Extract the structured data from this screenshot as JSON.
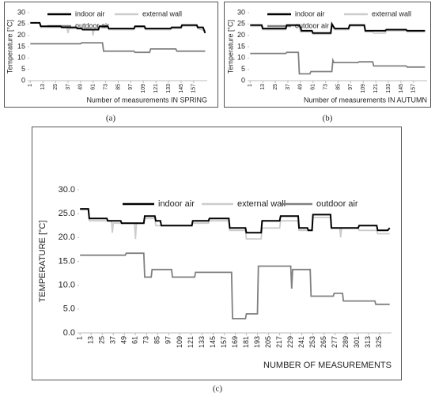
{
  "chart_data": [
    {
      "type": "line",
      "panel_label": "(a)",
      "ylabel": "Temperature [°C]",
      "xlabel": "Number of measurements IN SPRING",
      "legend": "top",
      "grid": false,
      "xlim": [
        0,
        170
      ],
      "xticks": [
        1,
        13,
        25,
        37,
        49,
        61,
        73,
        85,
        97,
        109,
        121,
        133,
        145,
        157
      ],
      "ylim": [
        0,
        30
      ],
      "yticks": [
        0,
        5,
        10,
        15,
        20,
        25,
        30
      ],
      "series": [
        {
          "name": "indoor air",
          "color": "#000000",
          "x": [
            1,
            10,
            11,
            30,
            31,
            45,
            46,
            50,
            51,
            66,
            67,
            75,
            76,
            100,
            101,
            110,
            111,
            135,
            136,
            145,
            146,
            160,
            161,
            166,
            168
          ],
          "values": [
            25.5,
            25.5,
            24,
            24,
            23.5,
            23.5,
            23,
            23,
            22.5,
            22.5,
            24,
            24,
            23,
            23,
            24,
            24,
            23,
            23,
            23.5,
            23.5,
            24.5,
            24.5,
            23.5,
            23.5,
            21
          ]
        },
        {
          "name": "external wall",
          "color": "#cccccc",
          "x": [
            1,
            10,
            11,
            36,
            37,
            38,
            60,
            61,
            62,
            66,
            67,
            75,
            76,
            100,
            101,
            110,
            111,
            135,
            136,
            145,
            146,
            160,
            161,
            168
          ],
          "values": [
            25.5,
            25.5,
            23.5,
            23.5,
            21,
            23,
            23,
            20,
            23,
            23,
            23.5,
            23.5,
            22.5,
            22.5,
            23.5,
            23.5,
            22.5,
            22.5,
            23,
            23,
            24,
            24,
            23,
            22
          ]
        },
        {
          "name": "outdoor air",
          "color": "#808080",
          "x": [
            1,
            49,
            50,
            70,
            71,
            100,
            101,
            115,
            116,
            140,
            141,
            168
          ],
          "values": [
            16.3,
            16.3,
            16.7,
            16.7,
            13,
            13,
            12.5,
            12.5,
            14,
            14,
            13,
            13
          ]
        }
      ]
    },
    {
      "type": "line",
      "panel_label": "(b)",
      "ylabel": "Temperature [°C]",
      "xlabel": "Number of measurements IN AUTUMN",
      "legend": "top",
      "grid": false,
      "xlim": [
        0,
        170
      ],
      "xticks": [
        1,
        13,
        25,
        37,
        49,
        61,
        73,
        85,
        97,
        109,
        121,
        133,
        145,
        157
      ],
      "ylim": [
        0,
        30
      ],
      "yticks": [
        0,
        5,
        10,
        15,
        20,
        25,
        30
      ],
      "series": [
        {
          "name": "indoor air",
          "color": "#000000",
          "x": [
            1,
            12,
            13,
            35,
            36,
            48,
            49,
            50,
            51,
            60,
            61,
            78,
            79,
            81,
            82,
            95,
            96,
            110,
            111,
            130,
            131,
            150,
            151,
            168
          ],
          "values": [
            24.5,
            24.5,
            23,
            23,
            24.5,
            24.5,
            23.5,
            22,
            22,
            22,
            21,
            21,
            25,
            23.5,
            23,
            23,
            24.5,
            24.5,
            22,
            22,
            22.5,
            22.5,
            22,
            22
          ]
        },
        {
          "name": "external wall",
          "color": "#cccccc",
          "x": [
            1,
            12,
            13,
            35,
            36,
            48,
            49,
            60,
            61,
            78,
            79,
            82,
            95,
            96,
            110,
            111,
            118,
            119,
            130,
            131,
            150,
            151,
            168
          ],
          "values": [
            24,
            24,
            22.5,
            22.5,
            24,
            24,
            21.5,
            21.5,
            20.5,
            20.5,
            24,
            22.5,
            22.5,
            24,
            24,
            21.5,
            21.5,
            21,
            21,
            22,
            22,
            21.5,
            21.5
          ]
        },
        {
          "name": "outdoor air",
          "color": "#808080",
          "x": [
            1,
            35,
            36,
            47,
            48,
            58,
            59,
            79,
            80,
            81,
            82,
            104,
            105,
            118,
            119,
            150,
            151,
            168
          ],
          "values": [
            12,
            12,
            12.5,
            12.5,
            3,
            3,
            4,
            4,
            9,
            8,
            8,
            8,
            8.3,
            8.3,
            6.5,
            6.5,
            6,
            6
          ]
        }
      ]
    },
    {
      "type": "line",
      "panel_label": "(c)",
      "ylabel": "TEMPERATURE [°C]",
      "xlabel": "NUMBER OF MEASUREMENTS",
      "legend": "top",
      "grid": false,
      "xlim": [
        0,
        338
      ],
      "xticks": [
        1,
        13,
        25,
        37,
        49,
        61,
        73,
        85,
        97,
        109,
        121,
        133,
        145,
        157,
        169,
        181,
        193,
        205,
        217,
        229,
        241,
        253,
        265,
        277,
        289,
        301,
        313,
        325
      ],
      "ylim": [
        0,
        30
      ],
      "yticks": [
        {
          "value": 0,
          "label": "0.0"
        },
        {
          "value": 5,
          "label": "5.0"
        },
        {
          "value": 10,
          "label": "10.0"
        },
        {
          "value": 15,
          "label": "15.0"
        },
        {
          "value": 20,
          "label": "20.0"
        },
        {
          "value": 25,
          "label": "25.0"
        },
        {
          "value": 30,
          "label": "30.0"
        }
      ],
      "series": [
        {
          "name": "indoor air",
          "color": "#000000",
          "x": [
            1,
            10,
            11,
            30,
            31,
            45,
            46,
            70,
            71,
            82,
            83,
            88,
            89,
            122,
            123,
            140,
            141,
            162,
            163,
            180,
            181,
            197,
            198,
            217,
            218,
            237,
            238,
            247,
            248,
            252,
            253,
            272,
            273,
            302,
            303,
            322,
            323,
            334,
            336
          ],
          "values": [
            26,
            26,
            24,
            24,
            23.5,
            23.5,
            23,
            23,
            24.5,
            24.5,
            23.5,
            23.5,
            22.5,
            22.5,
            23.5,
            23.5,
            24,
            24,
            22,
            22,
            21,
            21,
            23.5,
            23.5,
            24.5,
            24.5,
            22,
            22,
            21.5,
            21.5,
            24.8,
            24.8,
            22,
            22,
            22.5,
            22.5,
            21.5,
            21.5,
            22
          ]
        },
        {
          "name": "external wall",
          "color": "#cccccc",
          "x": [
            1,
            10,
            11,
            35,
            36,
            37,
            60,
            61,
            62,
            70,
            71,
            82,
            83,
            122,
            123,
            140,
            141,
            162,
            163,
            180,
            181,
            197,
            198,
            217,
            218,
            237,
            238,
            252,
            253,
            272,
            273,
            282,
            283,
            284,
            302,
            303,
            322,
            323,
            336
          ],
          "values": [
            25.8,
            25.8,
            23.5,
            23.5,
            21,
            23,
            23,
            19.7,
            23,
            23,
            24,
            24,
            22.5,
            22.5,
            23,
            23,
            23.5,
            23.5,
            21.5,
            21.5,
            19.7,
            19.7,
            22,
            22,
            23.5,
            23.5,
            21.5,
            21.5,
            24.2,
            24.2,
            22,
            22,
            20,
            22,
            22,
            21.5,
            21.5,
            20.8,
            20.8
          ]
        },
        {
          "name": "outdoor air",
          "color": "#808080",
          "x": [
            1,
            50,
            51,
            70,
            71,
            78,
            79,
            100,
            101,
            125,
            126,
            165,
            166,
            180,
            181,
            193,
            194,
            229,
            230,
            231,
            250,
            251,
            275,
            276,
            285,
            286,
            320,
            321,
            336
          ],
          "values": [
            16.3,
            16.3,
            16.7,
            16.7,
            11.7,
            11.7,
            13.3,
            13.3,
            11.7,
            11.7,
            12.7,
            12.7,
            3,
            3,
            4,
            4,
            14,
            14,
            9.3,
            13.3,
            13.3,
            7.7,
            7.7,
            8.3,
            8.3,
            6.7,
            6.7,
            6,
            6
          ]
        }
      ]
    }
  ]
}
